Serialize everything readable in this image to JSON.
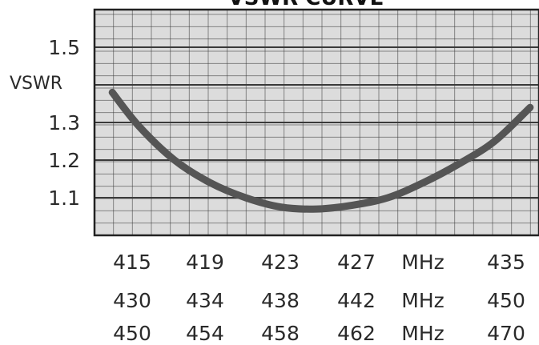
{
  "chart_data": {
    "type": "line",
    "title": "VSWR CURVE",
    "ylabel": "VSWR",
    "ylim": [
      1.0,
      1.6
    ],
    "xlim": [
      0,
      1
    ],
    "grid": true,
    "y_ticks": [
      "1.5",
      "",
      "1.3",
      "1.2",
      "1.1"
    ],
    "x_axis_rows": [
      {
        "ticks": [
          "415",
          "419",
          "423",
          "427",
          "MHz",
          "435"
        ]
      },
      {
        "ticks": [
          "430",
          "434",
          "438",
          "442",
          "MHz",
          "450"
        ]
      },
      {
        "ticks": [
          "450",
          "454",
          "458",
          "462",
          "MHz",
          "470"
        ]
      }
    ],
    "series": [
      {
        "color": "#555555",
        "x": [
          0.04,
          0.1,
          0.18,
          0.26,
          0.34,
          0.42,
          0.5,
          0.58,
          0.66,
          0.74,
          0.82,
          0.9,
          0.98
        ],
        "y": [
          1.38,
          1.29,
          1.2,
          1.14,
          1.1,
          1.075,
          1.07,
          1.08,
          1.1,
          1.14,
          1.19,
          1.25,
          1.34
        ]
      }
    ],
    "colors": {
      "plot_bg": "#dcdcdc",
      "grid": "#3a3a3a",
      "curve": "#555555"
    }
  }
}
